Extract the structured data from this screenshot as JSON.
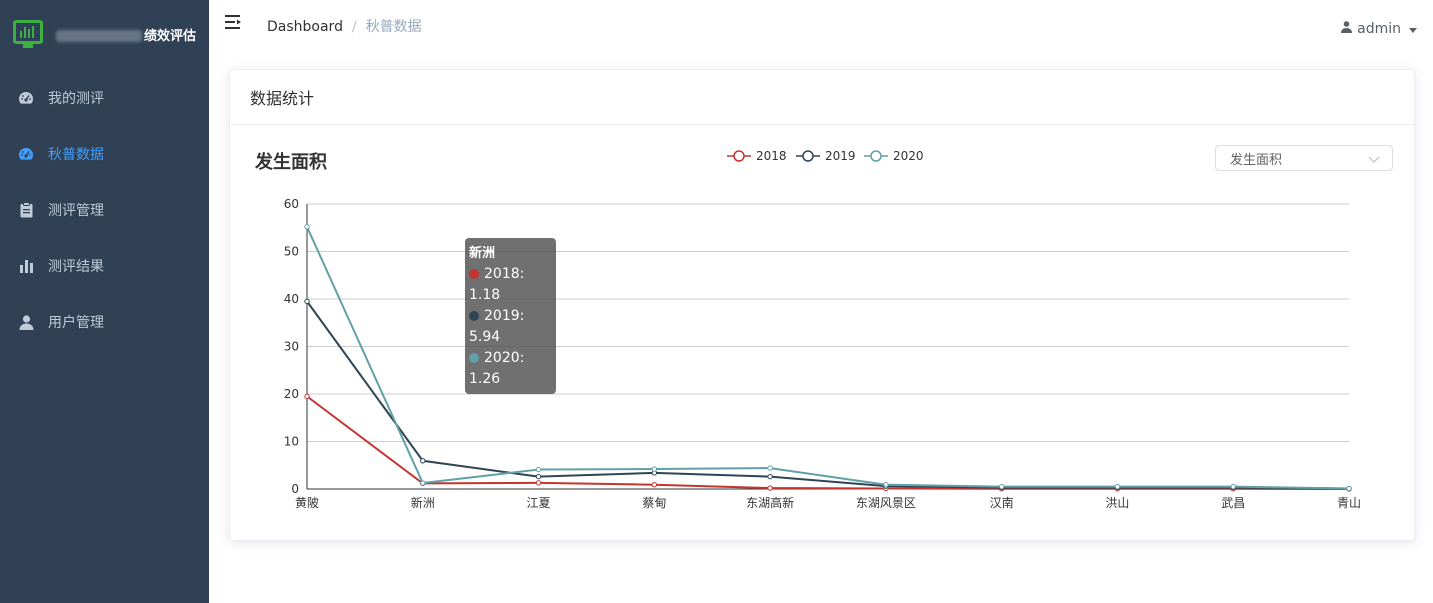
{
  "app": {
    "title": "绩效评估"
  },
  "sidebar": {
    "items": [
      {
        "label": "我的测评",
        "icon": "dashboard-gauge-icon",
        "active": false
      },
      {
        "label": "秋普数据",
        "icon": "dashboard-gauge-icon",
        "active": true
      },
      {
        "label": "测评管理",
        "icon": "clipboard-icon",
        "active": false
      },
      {
        "label": "测评结果",
        "icon": "bar-chart-icon",
        "active": false
      },
      {
        "label": "用户管理",
        "icon": "user-icon",
        "active": false
      }
    ]
  },
  "topbar": {
    "breadcrumb": {
      "root": "Dashboard",
      "separator": "/",
      "current": "秋普数据"
    },
    "user": "admin"
  },
  "card": {
    "header": "数据统计",
    "chart_title": "发生面积",
    "select_value": "发生面积"
  },
  "colors": {
    "sidebar_bg": "#304156",
    "active": "#409eff",
    "s2018": "#c23531",
    "s2019": "#2f4554",
    "s2020": "#61a0a8"
  },
  "tooltip": {
    "title": "新洲",
    "rows": [
      "2018: 1.18",
      "2019: 5.94",
      "2020: 1.26"
    ]
  },
  "chart_data": {
    "type": "line",
    "title": "发生面积",
    "categories": [
      "黄陂",
      "新洲",
      "江夏",
      "蔡甸",
      "东湖高新",
      "东湖风景区",
      "汉南",
      "洪山",
      "武昌",
      "青山"
    ],
    "series": [
      {
        "name": "2018",
        "color": "#c23531",
        "values": [
          19.5,
          1.18,
          1.3,
          0.9,
          0.2,
          0.1,
          0.05,
          0.05,
          0.05,
          0.0
        ]
      },
      {
        "name": "2019",
        "color": "#2f4554",
        "values": [
          39.5,
          5.94,
          2.6,
          3.4,
          2.6,
          0.6,
          0.3,
          0.3,
          0.3,
          0.1
        ]
      },
      {
        "name": "2020",
        "color": "#61a0a8",
        "values": [
          55.2,
          1.26,
          4.1,
          4.2,
          4.4,
          0.9,
          0.5,
          0.5,
          0.5,
          0.1
        ]
      }
    ],
    "ylim": [
      0,
      60
    ],
    "yticks": [
      0,
      10,
      20,
      30,
      40,
      50,
      60
    ],
    "grid": true,
    "legend": "top-center"
  }
}
